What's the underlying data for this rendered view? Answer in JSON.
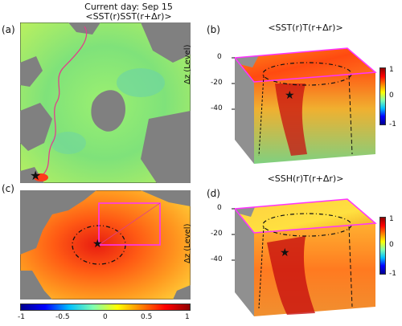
{
  "header": {
    "current_day": "Current day: Sep 15",
    "panel_a_title": "<SST(r)SST(r+Δr)>"
  },
  "panels": {
    "a": {
      "label": "(a)"
    },
    "b": {
      "label": "(b)",
      "title": "<SST(r)T(r+Δr)>"
    },
    "c": {
      "label": "(c)"
    },
    "d": {
      "label": "(d)",
      "title": "<SSH(r)T(r+Δr)>"
    }
  },
  "axes3d": {
    "ylabel": "Δz (Level)",
    "ticks": [
      "0",
      "-20",
      "-40"
    ]
  },
  "colorbar_small": {
    "ticks": [
      "1",
      "0",
      "-1"
    ]
  },
  "colorbar_bottom": {
    "ticks": [
      "-1",
      "-0.5",
      "0",
      "0.5",
      "1"
    ]
  },
  "colors": {
    "land": "#808080",
    "frame": "#ff33ff",
    "accent_path": "#e0408a"
  },
  "icons": [
    "star-marker-icon"
  ]
}
